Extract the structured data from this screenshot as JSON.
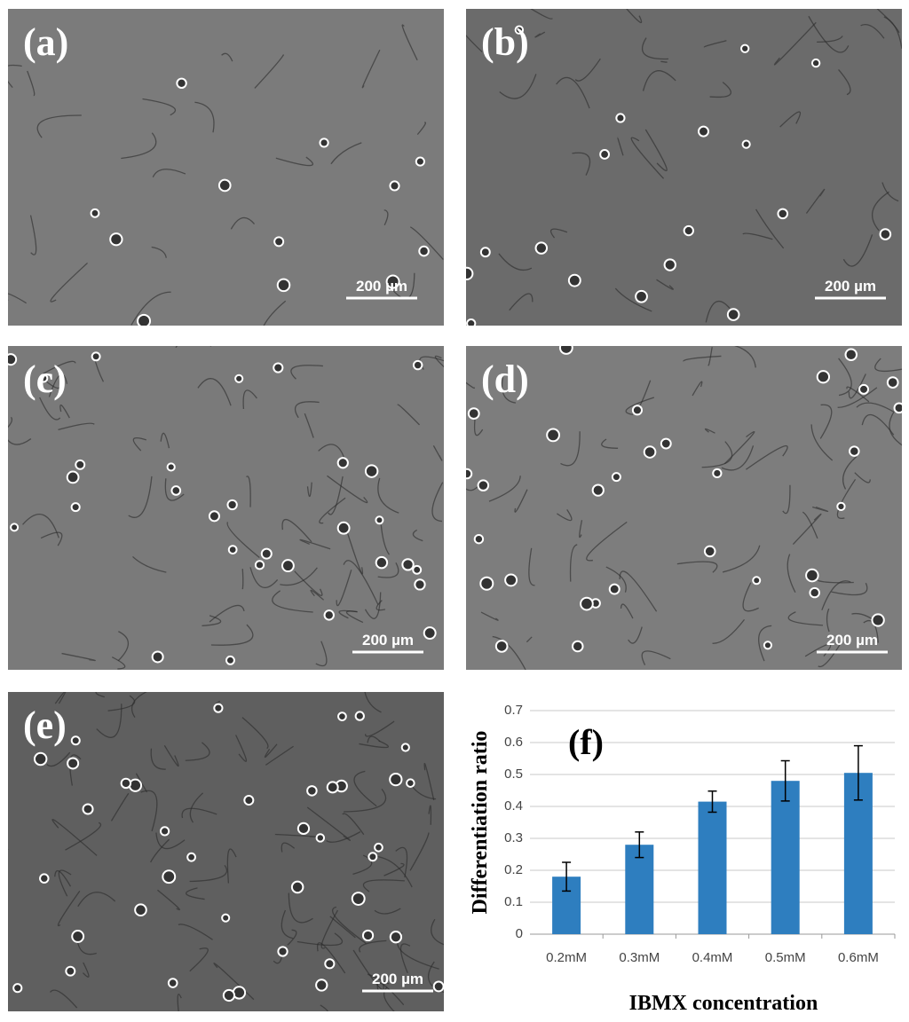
{
  "panels": [
    {
      "label": "(a)",
      "scale_bar": "200 µm"
    },
    {
      "label": "(b)",
      "scale_bar": "200 µm"
    },
    {
      "label": "(c)",
      "scale_bar": "200 µm"
    },
    {
      "label": "(d)",
      "scale_bar": "200 µm"
    },
    {
      "label": "(e)",
      "scale_bar": "200 µm"
    }
  ],
  "chart_data": {
    "type": "bar",
    "annotation": "(f)",
    "x_label": "IBMX concentration",
    "y_label": "Differentiation ratio",
    "categories": [
      "0.2mM",
      "0.3mM",
      "0.4mM",
      "0.5mM",
      "0.6mM"
    ],
    "values": [
      0.18,
      0.28,
      0.415,
      0.48,
      0.505
    ],
    "errors": [
      0.045,
      0.04,
      0.033,
      0.063,
      0.085
    ],
    "color": "#2e7ebf",
    "ylim": [
      0,
      0.7
    ],
    "yticks": [
      0,
      0.1,
      0.2,
      0.3,
      0.4,
      0.5,
      0.6,
      0.7
    ],
    "grid": true
  }
}
